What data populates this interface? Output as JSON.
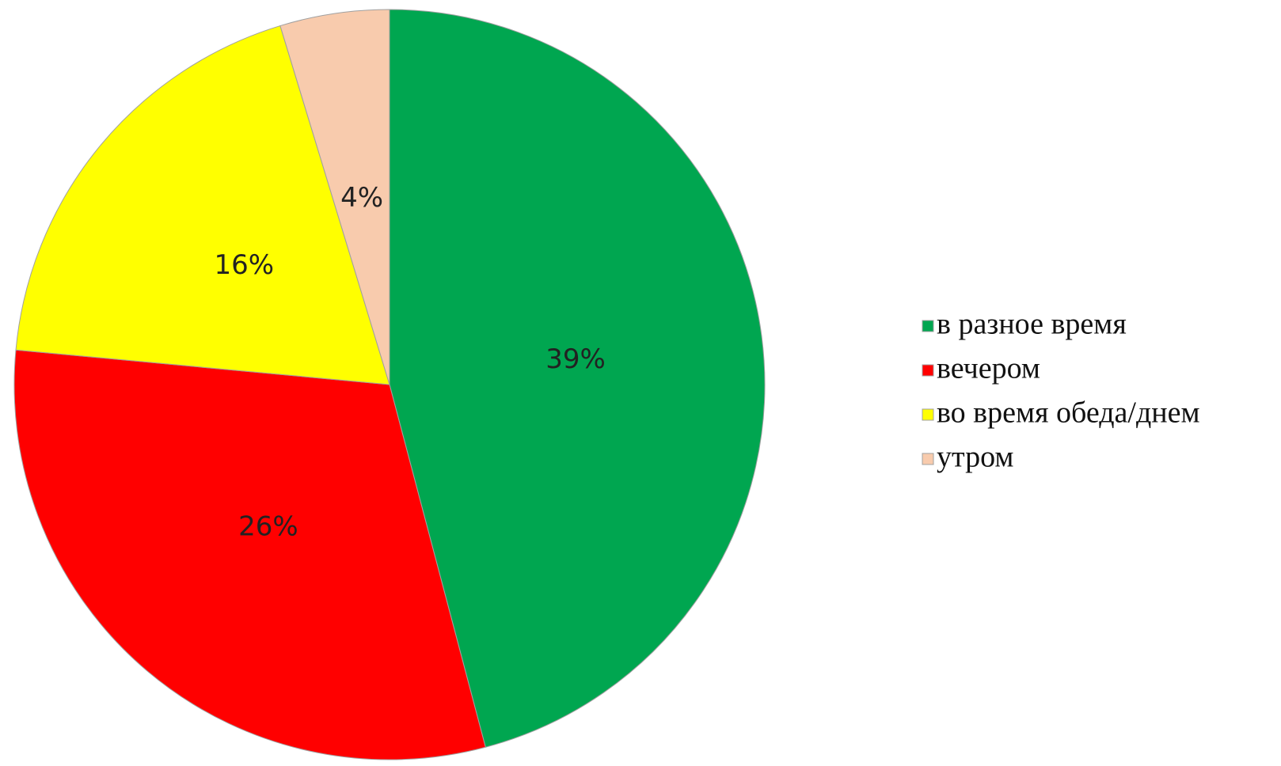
{
  "chart_data": {
    "type": "pie",
    "categories": [
      "в разное время",
      "вечером",
      "во время обеда/днем",
      "утром"
    ],
    "values": [
      39,
      26,
      16,
      4
    ],
    "value_labels": [
      "39%",
      "26%",
      "16%",
      "4%"
    ],
    "colors": [
      "#00a650",
      "#ff0000",
      "#ffff00",
      "#f8cbad"
    ],
    "legend": "right"
  }
}
